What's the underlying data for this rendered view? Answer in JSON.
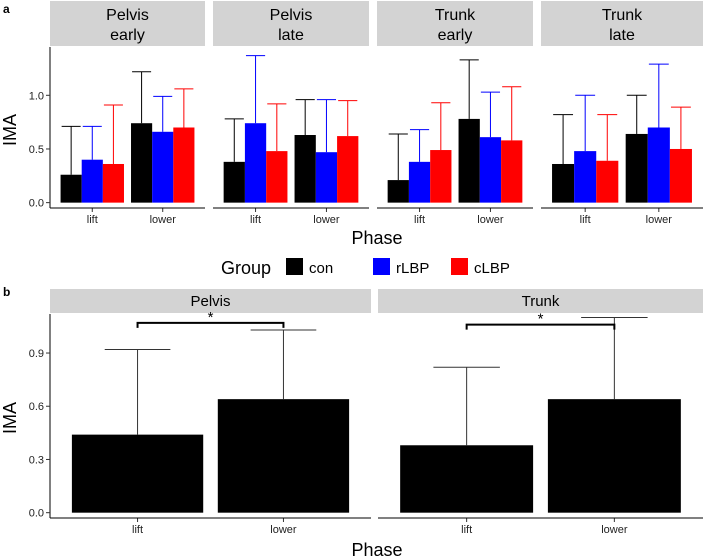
{
  "chart_data": [
    {
      "panel_label": "a",
      "type": "bar",
      "xlabel": "Phase",
      "ylabel": "IMA",
      "ylim": [
        -0.05,
        1.45
      ],
      "yticks": [
        0.0,
        0.5,
        1.0
      ],
      "ytick_labels": [
        "0.0",
        "0.5",
        "1.0"
      ],
      "categories": [
        "lift",
        "lower"
      ],
      "groups": [
        "con",
        "rLBP",
        "cLBP"
      ],
      "group_colors": [
        "#000000",
        "#0000ff",
        "#ff0000"
      ],
      "legend": {
        "title": "Group",
        "labels": [
          "con",
          "rLBP",
          "cLBP"
        ]
      },
      "facets": [
        {
          "title": [
            "Pelvis",
            "early"
          ],
          "series": [
            {
              "name": "con",
              "values": [
                0.26,
                0.74
              ],
              "err_upper": [
                0.71,
                1.22
              ]
            },
            {
              "name": "rLBP",
              "values": [
                0.4,
                0.66
              ],
              "err_upper": [
                0.71,
                0.99
              ]
            },
            {
              "name": "cLBP",
              "values": [
                0.36,
                0.7
              ],
              "err_upper": [
                0.91,
                1.06
              ]
            }
          ]
        },
        {
          "title": [
            "Pelvis",
            "late"
          ],
          "series": [
            {
              "name": "con",
              "values": [
                0.38,
                0.63
              ],
              "err_upper": [
                0.78,
                0.96
              ]
            },
            {
              "name": "rLBP",
              "values": [
                0.74,
                0.47
              ],
              "err_upper": [
                1.37,
                0.96
              ]
            },
            {
              "name": "cLBP",
              "values": [
                0.48,
                0.62
              ],
              "err_upper": [
                0.92,
                0.95
              ]
            }
          ]
        },
        {
          "title": [
            "Trunk",
            "early"
          ],
          "series": [
            {
              "name": "con",
              "values": [
                0.21,
                0.78
              ],
              "err_upper": [
                0.64,
                1.33
              ]
            },
            {
              "name": "rLBP",
              "values": [
                0.38,
                0.61
              ],
              "err_upper": [
                0.68,
                1.03
              ]
            },
            {
              "name": "cLBP",
              "values": [
                0.49,
                0.58
              ],
              "err_upper": [
                0.93,
                1.08
              ]
            }
          ]
        },
        {
          "title": [
            "Trunk",
            "late"
          ],
          "series": [
            {
              "name": "con",
              "values": [
                0.36,
                0.64
              ],
              "err_upper": [
                0.82,
                1.0
              ]
            },
            {
              "name": "rLBP",
              "values": [
                0.48,
                0.7
              ],
              "err_upper": [
                1.0,
                1.29
              ]
            },
            {
              "name": "cLBP",
              "values": [
                0.39,
                0.5
              ],
              "err_upper": [
                0.82,
                0.89
              ]
            }
          ]
        }
      ]
    },
    {
      "panel_label": "b",
      "type": "bar",
      "xlabel": "Phase",
      "ylabel": "IMA",
      "ylim": [
        -0.03,
        1.12
      ],
      "yticks": [
        0.0,
        0.3,
        0.6,
        0.9
      ],
      "ytick_labels": [
        "0.0",
        "0.3",
        "0.6",
        "0.9"
      ],
      "categories": [
        "lift",
        "lower"
      ],
      "bar_color": "#000000",
      "facets": [
        {
          "title": "Pelvis",
          "values": [
            0.44,
            0.64
          ],
          "err_upper": [
            0.92,
            1.03
          ],
          "annotation": {
            "text": "*",
            "from": "lift",
            "to": "lower",
            "y": 1.07
          }
        },
        {
          "title": "Trunk",
          "values": [
            0.38,
            0.64
          ],
          "err_upper": [
            0.82,
            1.1
          ],
          "annotation": {
            "text": "*",
            "from": "lift",
            "to": "lower",
            "y": 1.06
          }
        }
      ]
    }
  ]
}
